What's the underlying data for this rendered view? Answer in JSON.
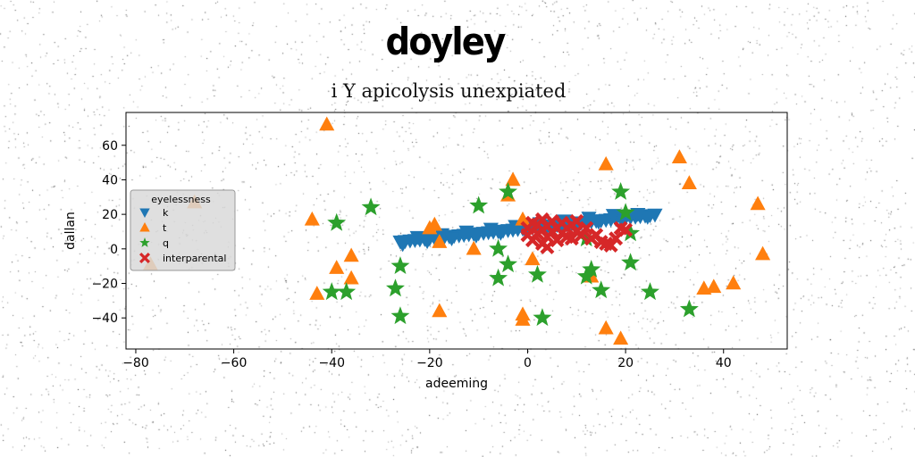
{
  "figure": {
    "suptitle": "doyley",
    "title": "i Y apicolysis unexpiated"
  },
  "chart_data": {
    "type": "scatter",
    "title": "i Y apicolysis unexpiated",
    "xlabel": "adeeming",
    "ylabel": "dallan",
    "xlim": [
      -82,
      53
    ],
    "ylim": [
      -58,
      79
    ],
    "xticks": [
      -80,
      -60,
      -40,
      -20,
      0,
      20,
      40
    ],
    "yticks": [
      -40,
      -20,
      0,
      20,
      40,
      60
    ],
    "grid": false,
    "legend": {
      "title": "eyelessness",
      "placement": "center-left"
    },
    "series": [
      {
        "name": "k",
        "marker": "triangle-down",
        "color": "#1f77b4",
        "points": [
          [
            -26,
            4.2
          ],
          [
            -25,
            4.5
          ],
          [
            -24,
            4.8
          ],
          [
            -23,
            5.1
          ],
          [
            -22,
            5.4
          ],
          [
            -21,
            5.7
          ],
          [
            -20,
            6.0
          ],
          [
            -19,
            6.3
          ],
          [
            -18,
            6.6
          ],
          [
            -17,
            6.9
          ],
          [
            -16,
            7.2
          ],
          [
            -15,
            7.5
          ],
          [
            -14,
            7.8
          ],
          [
            -13,
            8.1
          ],
          [
            -12,
            8.4
          ],
          [
            -11,
            8.7
          ],
          [
            -10,
            9.0
          ],
          [
            -9,
            9.3
          ],
          [
            -8,
            9.6
          ],
          [
            -7,
            9.9
          ],
          [
            -6,
            10.2
          ],
          [
            -5,
            10.5
          ],
          [
            -4,
            10.8
          ],
          [
            -3,
            11.1
          ],
          [
            -2,
            11.4
          ],
          [
            -1,
            11.7
          ],
          [
            0,
            12.0
          ],
          [
            1,
            12.3
          ],
          [
            2,
            12.6
          ],
          [
            3,
            12.9
          ],
          [
            4,
            13.2
          ],
          [
            5,
            13.5
          ],
          [
            6,
            13.8
          ],
          [
            7,
            14.1
          ],
          [
            8,
            14.4
          ],
          [
            9,
            14.7
          ],
          [
            10,
            15.0
          ],
          [
            11,
            15.3
          ],
          [
            12,
            15.6
          ],
          [
            13,
            15.9
          ],
          [
            14,
            16.2
          ],
          [
            15,
            16.5
          ],
          [
            16,
            16.8
          ],
          [
            17,
            17.1
          ],
          [
            18,
            17.4
          ],
          [
            19,
            17.7
          ],
          [
            20,
            18.0
          ],
          [
            21,
            18.3
          ],
          [
            22,
            18.6
          ],
          [
            23,
            18.9
          ],
          [
            24,
            19.2
          ],
          [
            25,
            19.5
          ],
          [
            26,
            19.8
          ],
          [
            -25.5,
            2.8
          ],
          [
            -20.5,
            4.5
          ],
          [
            -15.5,
            6.1
          ],
          [
            -10.5,
            7.7
          ],
          [
            -5.5,
            9.3
          ],
          [
            -0.5,
            10.9
          ],
          [
            4.5,
            12.5
          ],
          [
            9.5,
            14.1
          ],
          [
            14.5,
            15.7
          ],
          [
            19.5,
            17.3
          ],
          [
            24.5,
            18.6
          ],
          [
            -22.5,
            6.8
          ],
          [
            -17.5,
            8.4
          ],
          [
            -12.5,
            10.0
          ],
          [
            -7.5,
            11.6
          ],
          [
            -2.5,
            13.2
          ],
          [
            2.5,
            14.8
          ],
          [
            7.5,
            16.4
          ],
          [
            12.5,
            18.0
          ],
          [
            17.5,
            19.6
          ],
          [
            22.5,
            20.2
          ]
        ]
      },
      {
        "name": "t",
        "marker": "triangle-up",
        "color": "#ff7f0e",
        "points": [
          [
            -41,
            72
          ],
          [
            -77,
            -9
          ],
          [
            -68,
            27
          ],
          [
            -44,
            17
          ],
          [
            -43,
            -26
          ],
          [
            -39,
            -11
          ],
          [
            -36,
            -4
          ],
          [
            -36,
            -17
          ],
          [
            -20,
            12
          ],
          [
            -19,
            14
          ],
          [
            -18,
            4
          ],
          [
            -18,
            -36
          ],
          [
            -11,
            0
          ],
          [
            -4,
            31
          ],
          [
            -3,
            40
          ],
          [
            -1,
            17
          ],
          [
            -1,
            -41
          ],
          [
            -1,
            -38
          ],
          [
            1,
            -6
          ],
          [
            13,
            -16
          ],
          [
            16,
            -46
          ],
          [
            16,
            49
          ],
          [
            19,
            -52
          ],
          [
            31,
            53
          ],
          [
            33,
            38
          ],
          [
            36,
            -23
          ],
          [
            38,
            -22
          ],
          [
            42,
            -20
          ],
          [
            47,
            26
          ],
          [
            48,
            -3
          ]
        ]
      },
      {
        "name": "q",
        "marker": "star",
        "color": "#2ca02c",
        "points": [
          [
            -40,
            -25
          ],
          [
            -39,
            15
          ],
          [
            -37,
            -25
          ],
          [
            -32,
            24
          ],
          [
            -26,
            -10
          ],
          [
            -26,
            -39
          ],
          [
            -27,
            -23
          ],
          [
            -10,
            25
          ],
          [
            -6,
            0
          ],
          [
            -6,
            -17
          ],
          [
            -4,
            -9
          ],
          [
            -4,
            33
          ],
          [
            2,
            -15
          ],
          [
            3,
            -40
          ],
          [
            12,
            6
          ],
          [
            12,
            -16
          ],
          [
            13,
            -12
          ],
          [
            15,
            -24
          ],
          [
            19,
            33
          ],
          [
            20,
            21
          ],
          [
            21,
            9
          ],
          [
            21,
            -8
          ],
          [
            25,
            -25
          ],
          [
            33,
            -35
          ]
        ]
      },
      {
        "name": "interparental",
        "marker": "x",
        "color": "#d62728",
        "points": [
          [
            0,
            8
          ],
          [
            0,
            12
          ],
          [
            1,
            15
          ],
          [
            1,
            5
          ],
          [
            2,
            9
          ],
          [
            2,
            14
          ],
          [
            3,
            3
          ],
          [
            3,
            11
          ],
          [
            3,
            17
          ],
          [
            4,
            7
          ],
          [
            4,
            13
          ],
          [
            5,
            10
          ],
          [
            5,
            16
          ],
          [
            6,
            5
          ],
          [
            6,
            12
          ],
          [
            7,
            9
          ],
          [
            7,
            15
          ],
          [
            8,
            12
          ],
          [
            8,
            7
          ],
          [
            9,
            14
          ],
          [
            9,
            6
          ],
          [
            10,
            10
          ],
          [
            10,
            16
          ],
          [
            11,
            8
          ],
          [
            12,
            12
          ],
          [
            13,
            6
          ],
          [
            14,
            8
          ],
          [
            15,
            4
          ],
          [
            16,
            3
          ],
          [
            17,
            2
          ],
          [
            18,
            6
          ],
          [
            19,
            12
          ],
          [
            20,
            11
          ],
          [
            4,
            1
          ]
        ]
      }
    ]
  }
}
